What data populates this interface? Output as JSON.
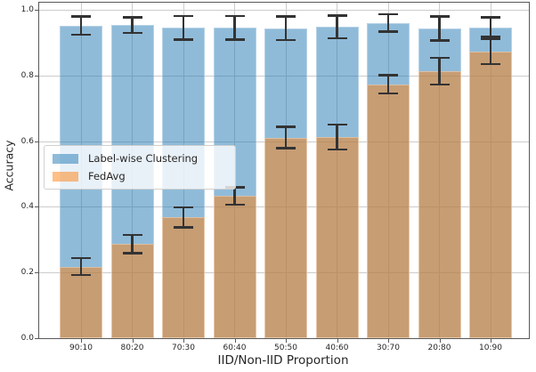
{
  "chart_data": {
    "type": "bar",
    "title": "",
    "xlabel": "IID/Non-IID Proportion",
    "ylabel": "Accuracy",
    "categories": [
      "90:10",
      "80:20",
      "70:30",
      "60:40",
      "50:50",
      "40:60",
      "30:70",
      "20:80",
      "10:90"
    ],
    "series": [
      {
        "name": "Label-wise Clustering",
        "color": "#1f77b4",
        "fill_alpha": 0.5,
        "values": [
          0.952,
          0.953,
          0.945,
          0.945,
          0.944,
          0.948,
          0.96,
          0.943,
          0.947
        ],
        "errors": [
          0.028,
          0.024,
          0.036,
          0.036,
          0.036,
          0.035,
          0.026,
          0.037,
          0.03
        ]
      },
      {
        "name": "FedAvg",
        "color": "#ff7f0e",
        "fill_alpha": 0.5,
        "values": [
          0.218,
          0.287,
          0.368,
          0.433,
          0.611,
          0.612,
          0.773,
          0.813,
          0.873
        ],
        "errors": [
          0.026,
          0.028,
          0.031,
          0.026,
          0.033,
          0.038,
          0.028,
          0.04,
          0.038
        ]
      }
    ],
    "ylim": [
      0.0,
      1.0
    ],
    "yticks": [
      0.0,
      0.2,
      0.4,
      0.6,
      0.8,
      1.0
    ],
    "ytick_labels": [
      "0.0",
      "0.2",
      "0.4",
      "0.6",
      "0.8",
      "1.0"
    ],
    "grid": true,
    "bar_style": "overlaid",
    "error_bars": true,
    "error_bar_color": "#333333",
    "legend_position": "center-left"
  }
}
